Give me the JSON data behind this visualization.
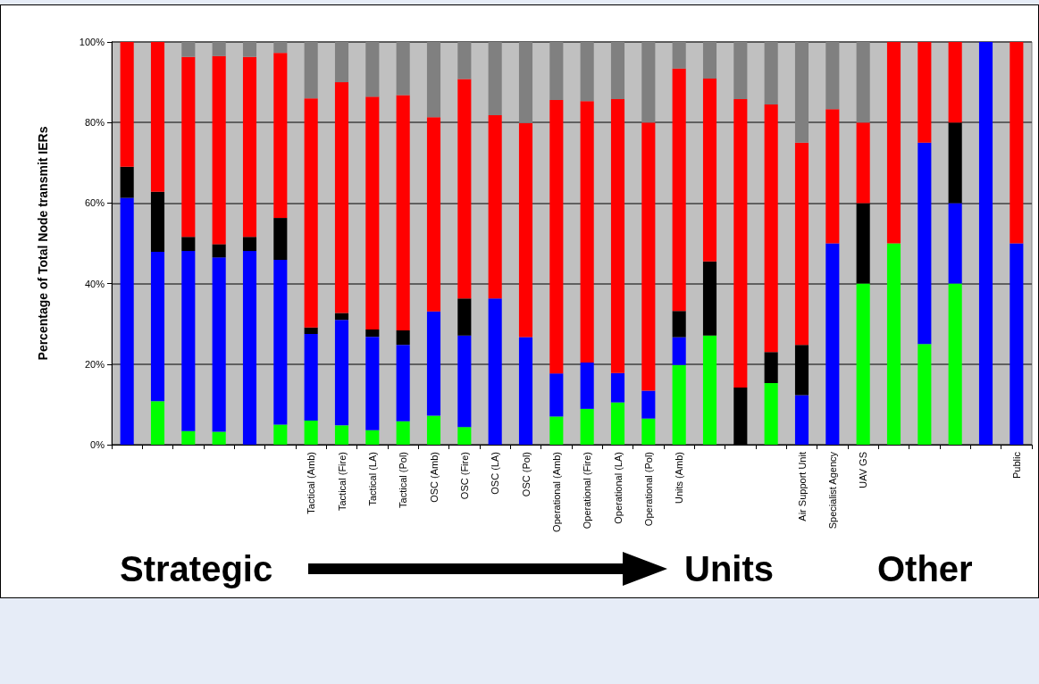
{
  "chart_data": {
    "type": "bar",
    "stacked": true,
    "ylabel": "Percentage of Total Node transmit IERs",
    "categories": [
      null,
      null,
      null,
      null,
      null,
      null,
      "Tactical (Amb)",
      "Tactical (Fire)",
      "Tactical (LA)",
      "Tactical (Pol)",
      "OSC (Amb)",
      "OSC (Fire)",
      "OSC (LA)",
      "OSC (Pol)",
      "Operational (Amb)",
      "Operational (Fire)",
      "Operational (LA)",
      "Operational (Pol)",
      "Units (Amb)",
      null,
      null,
      null,
      "Air Support Unit",
      "Specialist Agency",
      "UAV GS",
      null,
      null,
      null,
      null,
      "Public"
    ],
    "series": [
      {
        "color": "#00ff00",
        "values": [
          0,
          10.8,
          3.4,
          3.2,
          0,
          5.0,
          6.0,
          4.8,
          3.6,
          5.8,
          7.2,
          4.4,
          0,
          0,
          7.0,
          8.9,
          10.5,
          6.5,
          19.8,
          27.1,
          0,
          15.3,
          0,
          0,
          40,
          50,
          25,
          40,
          0,
          0
        ]
      },
      {
        "color": "#0000ff",
        "values": [
          61.3,
          37.1,
          44.7,
          43.3,
          48.1,
          40.9,
          21.5,
          26.2,
          23.2,
          19.0,
          25.9,
          22.7,
          36.3,
          26.7,
          10.7,
          11.5,
          7.3,
          6.9,
          6.9,
          0,
          0,
          0,
          12.3,
          50,
          0,
          0,
          50,
          20,
          100,
          50
        ]
      },
      {
        "color": "#000000",
        "values": [
          7.7,
          14.9,
          3.5,
          3.3,
          3.5,
          10.4,
          1.6,
          1.7,
          1.8,
          3.6,
          0,
          9.2,
          0,
          0,
          0,
          0,
          0,
          0,
          6.5,
          18.4,
          14.2,
          7.7,
          12.5,
          0,
          20,
          0,
          0,
          20,
          0,
          0
        ]
      },
      {
        "color": "#ff0000",
        "values": [
          31.0,
          37.2,
          44.7,
          46.7,
          44.7,
          41.0,
          56.9,
          57.3,
          57.8,
          58.4,
          48.2,
          54.5,
          45.5,
          53.2,
          67.9,
          64.9,
          68.0,
          66.6,
          60.2,
          45.4,
          71.6,
          61.5,
          50.2,
          33.3,
          20,
          50,
          25,
          20,
          0,
          50
        ]
      },
      {
        "color": "#808080",
        "values": [
          0,
          0,
          3.7,
          3.5,
          3.7,
          2.7,
          14.0,
          10.0,
          13.6,
          13.2,
          18.7,
          9.2,
          18.2,
          20.1,
          14.4,
          14.7,
          14.2,
          20.0,
          6.6,
          9.1,
          14.2,
          15.5,
          25.0,
          16.7,
          20,
          0,
          0,
          0,
          0,
          0
        ]
      }
    ],
    "ylim": [
      0,
      100
    ],
    "yticks": [
      {
        "value": 0,
        "label": "0%"
      },
      {
        "value": 20,
        "label": "20%"
      },
      {
        "value": 40,
        "label": "40%"
      },
      {
        "value": 60,
        "label": "60%"
      },
      {
        "value": 80,
        "label": "80%"
      },
      {
        "value": 100,
        "label": "100%"
      }
    ],
    "grid": "y",
    "annotations": [
      "Strategic",
      "Units",
      "Other"
    ]
  }
}
